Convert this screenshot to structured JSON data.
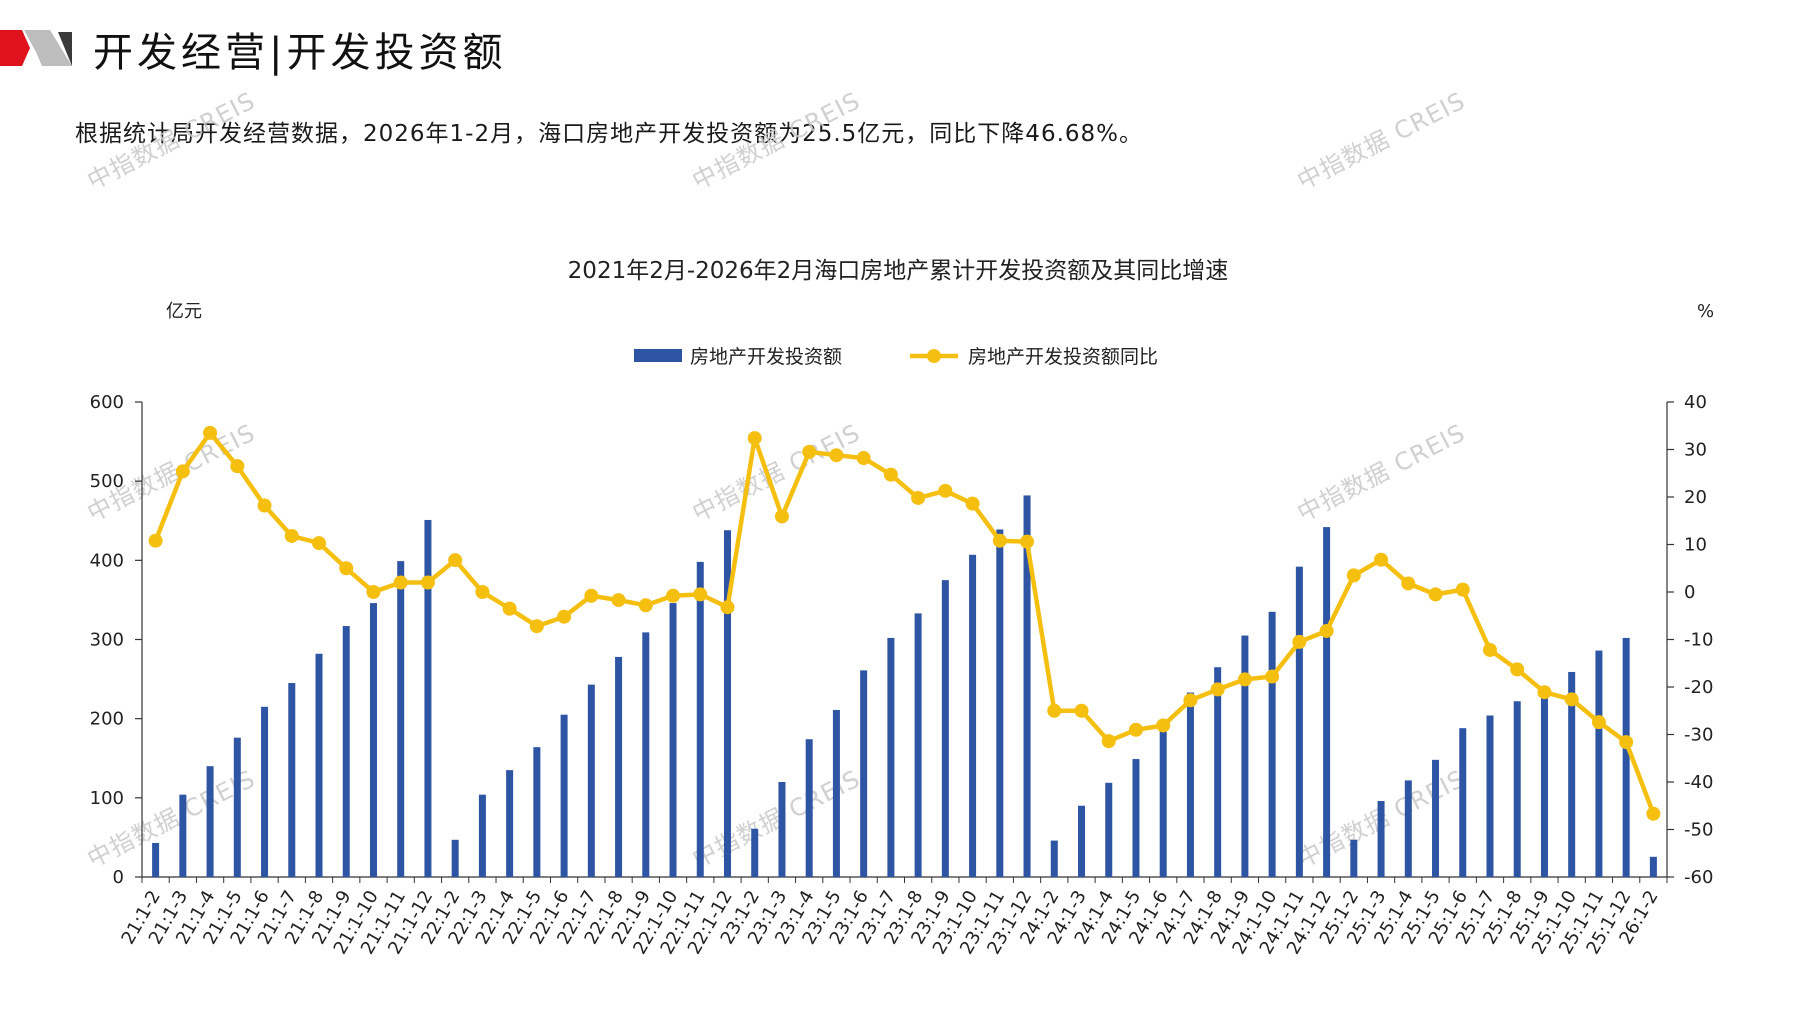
{
  "header": {
    "title": "开发经营|开发投资额",
    "summary": "根据统计局开发经营数据，2026年1-2月，海口房地产开发投资额为25.5亿元，同比下降46.68%。"
  },
  "watermark": "中指数据 CREIS",
  "colors": {
    "bar": "#2e54a4",
    "line": "#f5bf10",
    "logo_red": "#e0121b",
    "logo_gray": "#bdbdbd"
  },
  "chart_data": {
    "type": "bar",
    "title": "2021年2月-2026年2月海口房地产累计开发投资额及其同比增速",
    "y_left_unit": "亿元",
    "y_right_unit": "%",
    "ylim_left": [
      0,
      600
    ],
    "ylim_right": [
      -60,
      40
    ],
    "yticks_left": [
      "0",
      "100",
      "200",
      "300",
      "400",
      "500",
      "600"
    ],
    "yticks_right": [
      "-60",
      "-50",
      "-40",
      "-30",
      "-20",
      "-10",
      "0",
      "10",
      "20",
      "30",
      "40"
    ],
    "grid": false,
    "legend_position": "top-center",
    "categories": [
      "21:1-2",
      "21:1-3",
      "21:1-4",
      "21:1-5",
      "21:1-6",
      "21:1-7",
      "21:1-8",
      "21:1-9",
      "21:1-10",
      "21:1-11",
      "21:1-12",
      "22:1-2",
      "22:1-3",
      "22:1-4",
      "22:1-5",
      "22:1-6",
      "22:1-7",
      "22:1-8",
      "22:1-9",
      "22:1-10",
      "22:1-11",
      "22:1-12",
      "23:1-2",
      "23:1-3",
      "23:1-4",
      "23:1-5",
      "23:1-6",
      "23:1-7",
      "23:1-8",
      "23:1-9",
      "23:1-10",
      "23:1-11",
      "23:1-12",
      "24:1-2",
      "24:1-3",
      "24:1-4",
      "24:1-5",
      "24:1-6",
      "24:1-7",
      "24:1-8",
      "24:1-9",
      "24:1-10",
      "24:1-11",
      "24:1-12",
      "25:1-2",
      "25:1-3",
      "25:1-4",
      "25:1-5",
      "25:1-6",
      "25:1-7",
      "25:1-8",
      "25:1-9",
      "25:1-10",
      "25:1-11",
      "25:1-12",
      "26:1-2"
    ],
    "series": [
      {
        "name": "房地产开发投资额",
        "type": "bar",
        "axis": "left",
        "values": [
          43,
          104,
          140,
          176,
          215,
          245,
          282,
          317,
          346,
          399,
          451,
          47,
          104,
          135,
          164,
          205,
          243,
          278,
          309,
          346,
          398,
          438,
          61,
          120,
          174,
          211,
          261,
          302,
          333,
          375,
          407,
          439,
          482,
          46,
          90,
          119,
          149,
          187,
          233,
          265,
          305,
          335,
          392,
          442,
          47,
          96,
          122,
          148,
          188,
          204,
          222,
          233,
          259,
          286,
          302,
          25.5
        ]
      },
      {
        "name": "房地产开发投资额同比",
        "type": "line",
        "axis": "right",
        "values": [
          10.8,
          25.4,
          33.5,
          26.5,
          18.2,
          11.8,
          10.3,
          5.0,
          0.0,
          2.0,
          2.0,
          6.7,
          0.0,
          -3.5,
          -7.2,
          -5.2,
          -0.8,
          -1.7,
          -2.8,
          -0.8,
          -0.5,
          -3.2,
          32.4,
          15.9,
          29.5,
          28.8,
          28.2,
          24.7,
          19.8,
          21.3,
          18.6,
          10.8,
          10.6,
          -25.0,
          -25.0,
          -31.4,
          -29.0,
          -28.1,
          -22.8,
          -20.5,
          -18.4,
          -17.8,
          -10.5,
          -8.2,
          3.5,
          6.8,
          1.8,
          -0.5,
          0.5,
          -12.2,
          -16.3,
          -21.1,
          -22.6,
          -27.4,
          -31.6,
          -46.68
        ]
      }
    ]
  }
}
